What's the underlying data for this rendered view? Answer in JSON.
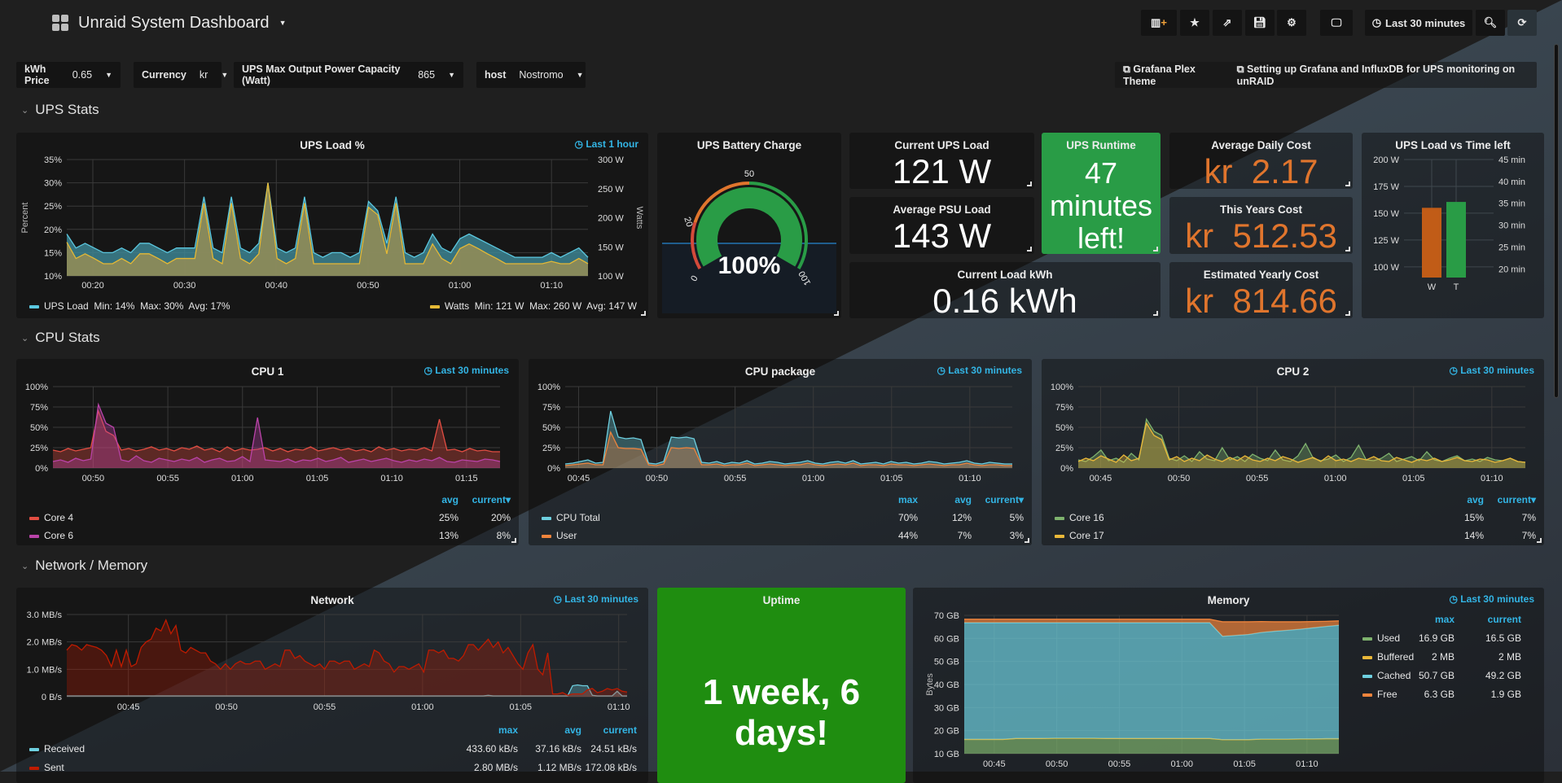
{
  "header": {
    "title": "Unraid System Dashboard",
    "time_range": "Last 30 minutes"
  },
  "toolbar": {
    "icons": [
      "add-panel-icon",
      "star-icon",
      "share-icon",
      "save-icon",
      "gear-icon",
      "tv-icon",
      "clock-icon",
      "zoom-out-icon",
      "refresh-icon"
    ]
  },
  "variables": [
    {
      "label": "kWh Price",
      "value": "0.65"
    },
    {
      "label": "Currency",
      "value": "kr"
    },
    {
      "label": "UPS Max Output Power Capacity (Watt)",
      "value": "865"
    },
    {
      "label": "host",
      "value": "Nostromo"
    }
  ],
  "links": [
    "Grafana Plex Theme",
    "Setting up Grafana and InfluxDB for UPS monitoring on unRAID"
  ],
  "rows": [
    "UPS Stats",
    "CPU Stats",
    "Network / Memory"
  ],
  "colors": {
    "accent": "#33b5e5",
    "green": "#299c46",
    "uptime_green": "#1f8d10",
    "orange": "#e0752d",
    "bar_orange": "#c15c17"
  },
  "ups_load": {
    "title": "UPS Load %",
    "time_range": "Last 1 hour",
    "ylabel_left": "Percent",
    "ylabel_right": "Watts",
    "left_ticks": [
      "35%",
      "30%",
      "25%",
      "20%",
      "15%",
      "10%"
    ],
    "left_range": [
      10,
      35
    ],
    "right_ticks": [
      "300 W",
      "250 W",
      "200 W",
      "150 W",
      "100 W"
    ],
    "right_range": [
      100,
      300
    ],
    "x_ticks": [
      "00:20",
      "00:30",
      "00:40",
      "00:50",
      "01:00",
      "01:10"
    ],
    "load": [
      19,
      16,
      17,
      16,
      15,
      15,
      16,
      15,
      17,
      17,
      16,
      15,
      16,
      16,
      16,
      27,
      16,
      15,
      27,
      16,
      15,
      17,
      30,
      16,
      15,
      16,
      27,
      15,
      14,
      15,
      15,
      14,
      15,
      26,
      24,
      17,
      27,
      15,
      14,
      15,
      19,
      16,
      15,
      18,
      19,
      18,
      17,
      16,
      15,
      14,
      14,
      14,
      14,
      15,
      14,
      15,
      16,
      14
    ],
    "watts": [
      158,
      130,
      138,
      130,
      121,
      121,
      130,
      121,
      138,
      138,
      130,
      121,
      130,
      130,
      130,
      225,
      130,
      121,
      225,
      130,
      121,
      138,
      260,
      130,
      121,
      130,
      225,
      121,
      121,
      121,
      121,
      121,
      121,
      218,
      205,
      138,
      225,
      121,
      121,
      121,
      155,
      130,
      121,
      147,
      155,
      147,
      138,
      130,
      121,
      121,
      121,
      121,
      121,
      125,
      121,
      121,
      130,
      121
    ],
    "legend": [
      {
        "name": "UPS Load",
        "stats": "Min: 14%  Max: 30%  Avg: 17%",
        "color": "#5bc8e0"
      },
      {
        "name": "Watts",
        "stats": "Min: 121 W  Max: 260 W  Avg: 147 W",
        "color": "#e5b935"
      }
    ]
  },
  "battery": {
    "title": "UPS Battery Charge",
    "value": "100%",
    "percent": 100,
    "thresholds": [
      "0",
      "20",
      "50",
      "100"
    ]
  },
  "current_load": {
    "title": "Current UPS Load",
    "value": "121 W"
  },
  "avg_psu": {
    "title": "Average PSU Load",
    "value": "143 W"
  },
  "load_kwh": {
    "title": "Current Load kWh",
    "value": "0.16 kWh"
  },
  "runtime": {
    "title": "UPS Runtime",
    "line1": "47",
    "line2": "minutes",
    "line3": "left!"
  },
  "daily_cost": {
    "title": "Average Daily Cost",
    "currency": "kr",
    "value": "2.17"
  },
  "year_cost": {
    "title": "This Years Cost",
    "currency": "kr",
    "value": "512.53"
  },
  "est_cost": {
    "title": "Estimated Yearly Cost",
    "currency": "kr",
    "value": "814.66"
  },
  "load_vs_time": {
    "title": "UPS Load vs Time left",
    "left_ticks": [
      "200 W",
      "175 W",
      "150 W",
      "125 W",
      "100 W"
    ],
    "left_range": [
      90,
      200
    ],
    "right_ticks": [
      "45 min",
      "40 min",
      "35 min",
      "30 min",
      "25 min",
      "20 min"
    ],
    "right_range": [
      18,
      45
    ],
    "bars": [
      {
        "label": "W",
        "value": 155,
        "color": "#c15c17"
      },
      {
        "label": "T",
        "value": 35.3,
        "color": "#299c46"
      }
    ]
  },
  "cpu1": {
    "title": "CPU 1",
    "time_range": "Last 30 minutes",
    "y_ticks": [
      "100%",
      "75%",
      "50%",
      "25%",
      "0%"
    ],
    "x_ticks": [
      "00:50",
      "00:55",
      "01:00",
      "01:05",
      "01:10",
      "01:15"
    ],
    "legend_headers": [
      "avg",
      "current▾"
    ],
    "series": [
      {
        "name": "Core 4",
        "color": "#e24d42",
        "avg": "25%",
        "current": "20%",
        "values": [
          22,
          20,
          24,
          21,
          23,
          25,
          70,
          45,
          40,
          22,
          24,
          21,
          23,
          26,
          22,
          24,
          21,
          25,
          23,
          27,
          22,
          24,
          20,
          26,
          21,
          24,
          22,
          23,
          25,
          21,
          24,
          20,
          23,
          22,
          26,
          21,
          23,
          25,
          22,
          24,
          21,
          23,
          20,
          26,
          22,
          24,
          21,
          23,
          22,
          25,
          21,
          60,
          22,
          23,
          20,
          24,
          21,
          22,
          20,
          20
        ]
      },
      {
        "name": "Core 6",
        "color": "#ba43a9",
        "avg": "13%",
        "current": "8%",
        "values": [
          8,
          10,
          7,
          12,
          9,
          11,
          78,
          55,
          50,
          10,
          8,
          15,
          9,
          7,
          12,
          10,
          8,
          11,
          9,
          13,
          7,
          10,
          12,
          8,
          9,
          14,
          8,
          62,
          10,
          9,
          8,
          11,
          7,
          10,
          9,
          12,
          8,
          10,
          13,
          7,
          9,
          11,
          8,
          10,
          12,
          9,
          7,
          10,
          8,
          11,
          9,
          13,
          8,
          7,
          10,
          9,
          8,
          11,
          10,
          8
        ]
      }
    ]
  },
  "cpu_pkg": {
    "title": "CPU package",
    "time_range": "Last 30 minutes",
    "y_ticks": [
      "100%",
      "75%",
      "50%",
      "25%",
      "0%"
    ],
    "x_ticks": [
      "00:45",
      "00:50",
      "00:55",
      "01:00",
      "01:05",
      "01:10"
    ],
    "legend_headers": [
      "max",
      "avg",
      "current▾"
    ],
    "series": [
      {
        "name": "CPU Total",
        "color": "#6ed0e0",
        "max": "70%",
        "avg": "12%",
        "current": "5%",
        "values": [
          5,
          6,
          8,
          10,
          6,
          7,
          70,
          38,
          36,
          37,
          35,
          6,
          5,
          8,
          38,
          37,
          38,
          36,
          7,
          6,
          8,
          5,
          7,
          6,
          9,
          5,
          6,
          8,
          7,
          5,
          6,
          7,
          9,
          6,
          5,
          7,
          8,
          6,
          9,
          5,
          6,
          7,
          5,
          8,
          6,
          7,
          5,
          6,
          8,
          7,
          5,
          6,
          7,
          9,
          6,
          5,
          7,
          6,
          5,
          5
        ]
      },
      {
        "name": "User",
        "color": "#ef843c",
        "max": "44%",
        "avg": "7%",
        "current": "3%",
        "values": [
          3,
          4,
          5,
          6,
          4,
          4,
          44,
          25,
          24,
          24,
          23,
          4,
          3,
          5,
          25,
          24,
          25,
          24,
          4,
          4,
          5,
          3,
          4,
          4,
          6,
          3,
          4,
          5,
          4,
          3,
          4,
          4,
          6,
          4,
          3,
          4,
          5,
          4,
          6,
          3,
          4,
          4,
          3,
          5,
          4,
          4,
          3,
          4,
          5,
          4,
          3,
          4,
          4,
          6,
          4,
          3,
          4,
          4,
          3,
          3
        ]
      }
    ]
  },
  "cpu2": {
    "title": "CPU 2",
    "time_range": "Last 30 minutes",
    "y_ticks": [
      "100%",
      "75%",
      "50%",
      "25%",
      "0%"
    ],
    "x_ticks": [
      "00:45",
      "00:50",
      "00:55",
      "01:00",
      "01:05",
      "01:10"
    ],
    "legend_headers": [
      "avg",
      "current▾"
    ],
    "series": [
      {
        "name": "Core 16",
        "color": "#7eb26d",
        "avg": "15%",
        "current": "7%",
        "values": [
          10,
          8,
          14,
          22,
          9,
          12,
          7,
          18,
          10,
          60,
          45,
          40,
          12,
          9,
          15,
          8,
          20,
          11,
          9,
          25,
          10,
          14,
          8,
          17,
          12,
          9,
          22,
          10,
          8,
          15,
          30,
          12,
          9,
          11,
          16,
          8,
          13,
          28,
          10,
          9,
          12,
          18,
          8,
          11,
          14,
          9,
          20,
          10,
          8,
          12,
          15,
          9,
          11,
          8,
          13,
          10,
          9,
          12,
          8,
          7
        ]
      },
      {
        "name": "Core 17",
        "color": "#eab839",
        "avg": "14%",
        "current": "7%",
        "values": [
          8,
          12,
          9,
          15,
          11,
          7,
          16,
          9,
          12,
          55,
          40,
          35,
          10,
          14,
          8,
          12,
          9,
          16,
          11,
          8,
          13,
          9,
          15,
          10,
          8,
          12,
          9,
          14,
          11,
          7,
          10,
          13,
          8,
          15,
          9,
          11,
          8,
          12,
          10,
          14,
          9,
          8,
          13,
          10,
          7,
          11,
          9,
          12,
          8,
          10,
          13,
          9,
          8,
          11,
          10,
          7,
          9,
          12,
          8,
          7
        ]
      }
    ]
  },
  "network": {
    "title": "Network",
    "time_range": "Last 30 minutes",
    "y_ticks": [
      "3.0 MB/s",
      "2.0 MB/s",
      "1.0 MB/s",
      "0 B/s"
    ],
    "y_range": [
      0,
      3
    ],
    "x_ticks": [
      "00:45",
      "00:50",
      "00:55",
      "01:00",
      "01:05",
      "01:10"
    ],
    "legend_headers": [
      "max",
      "avg",
      "current"
    ],
    "series": [
      {
        "name": "Received",
        "color": "#6ed0e0",
        "max": "433.60 kB/s",
        "avg": "37.16 kB/s",
        "current": "24.51 kB/s",
        "values": [
          0.03,
          0.03,
          0.03,
          0.03,
          0.03,
          0.03,
          0.03,
          0.03,
          0.03,
          0.03,
          0.03,
          0.03,
          0.03,
          0.03,
          0.03,
          0.03,
          0.03,
          0.03,
          0.03,
          0.03,
          0.03,
          0.03,
          0.03,
          0.03,
          0.03,
          0.03,
          0.03,
          0.03,
          0.03,
          0.03,
          0.03,
          0.03,
          0.03,
          0.03,
          0.03,
          0.03,
          0.03,
          0.03,
          0.03,
          0.03,
          0.03,
          0.03,
          0.03,
          0.03,
          0.03,
          0.03,
          0.03,
          0.03,
          0.03,
          0.03,
          0.03,
          0.03,
          0.03,
          0.03,
          0.03,
          0.03,
          0.03,
          0.03,
          0.03,
          0.03,
          0.03,
          0.03,
          0.03,
          0.03,
          0.03,
          0.03,
          0.03,
          0.03,
          0.03,
          0.03,
          0.03,
          0.03,
          0.03,
          0.03,
          0.03,
          0.03,
          0.03,
          0.03,
          0.03,
          0.03,
          0.03,
          0.03,
          0.03,
          0.03,
          0.03,
          0.05,
          0.03,
          0.03,
          0.03,
          0.03,
          0.03,
          0.03,
          0.03,
          0.03,
          0.03,
          0.03,
          0.03,
          0.03,
          0.03,
          0.03,
          0.03,
          0.03,
          0.4,
          0.43,
          0.4,
          0.4,
          0.05,
          0.03,
          0.03,
          0.03,
          0.03,
          0.2,
          0.03,
          0.03
        ]
      },
      {
        "name": "Sent",
        "color": "#bf1b00",
        "max": "2.80 MB/s",
        "avg": "1.12 MB/s",
        "current": "172.08 kB/s",
        "values": [
          1.7,
          1.9,
          1.85,
          1.7,
          1.9,
          1.85,
          1.8,
          1.7,
          1.5,
          1.1,
          1.7,
          1.1,
          1.7,
          1.1,
          1.2,
          1.8,
          2.0,
          2.1,
          2.5,
          2.4,
          2.8,
          2.3,
          2.6,
          1.7,
          1.6,
          1.8,
          1.7,
          1.6,
          1.6,
          1.3,
          1.2,
          1.0,
          1.2,
          1.0,
          1.2,
          1.3,
          1.2,
          1.2,
          1.3,
          1.3,
          1.0,
          1.1,
          1.2,
          1.1,
          1.7,
          1.7,
          1.4,
          1.5,
          1.3,
          1.2,
          1.1,
          1.2,
          1.0,
          1.3,
          1.3,
          1.2,
          1.3,
          1.3,
          1.0,
          1.1,
          1.2,
          1.1,
          1.7,
          1.6,
          1.3,
          1.2,
          0.9,
          1.1,
          1.1,
          1.0,
          1.1,
          1.2,
          0.9,
          1.7,
          1.7,
          1.6,
          1.7,
          1.4,
          1.4,
          1.3,
          1.5,
          1.9,
          1.9,
          1.7,
          1.9,
          2.1,
          1.8,
          2.0,
          1.6,
          1.8,
          1.5,
          1.2,
          1.0,
          1.6,
          1.9,
          1.0,
          0.8,
          1.6,
          0.1,
          0.1,
          0.15,
          0.05,
          0.1,
          0.1,
          0.1,
          0.25,
          0.3,
          0.15,
          0.2,
          0.3,
          0.25,
          0.3,
          0.2,
          0.17
        ]
      }
    ]
  },
  "uptime": {
    "title": "Uptime",
    "value": "1 week, 6 days!"
  },
  "memory": {
    "title": "Memory",
    "time_range": "Last 30 minutes",
    "ylabel": "Bytes",
    "y_ticks": [
      "70 GB",
      "60 GB",
      "50 GB",
      "40 GB",
      "30 GB",
      "20 GB",
      "10 GB"
    ],
    "y_range": [
      10,
      70
    ],
    "x_ticks": [
      "00:45",
      "00:50",
      "00:55",
      "01:00",
      "01:05",
      "01:10"
    ],
    "legend_headers": [
      "max",
      "current"
    ],
    "series": [
      {
        "name": "Used",
        "color": "#7eb26d",
        "max": "16.9 GB",
        "current": "16.5 GB",
        "values": [
          16.2,
          16.2,
          16.2,
          16.2,
          16.6,
          16.6,
          16.6,
          16.7,
          16.7,
          16.7,
          16.7,
          16.6,
          16.6,
          16.6,
          16.6,
          16.6,
          16.6,
          16.6,
          16.6,
          16.6,
          16.1,
          16.1,
          16.1,
          16.3,
          16.3,
          16.3,
          16.4,
          16.4,
          16.5,
          16.5
        ]
      },
      {
        "name": "Buffered",
        "color": "#eab839",
        "max": "2 MB",
        "current": "2 MB",
        "values": [
          0.002,
          0.002,
          0.002,
          0.002,
          0.002,
          0.002,
          0.002,
          0.002,
          0.002,
          0.002,
          0.002,
          0.002,
          0.002,
          0.002,
          0.002,
          0.002,
          0.002,
          0.002,
          0.002,
          0.002,
          0.002,
          0.002,
          0.002,
          0.002,
          0.002,
          0.002,
          0.002,
          0.002,
          0.002,
          0.002
        ]
      },
      {
        "name": "Cached",
        "color": "#6ed0e0",
        "max": "50.7 GB",
        "current": "49.2 GB",
        "values": [
          50.6,
          50.6,
          50.6,
          50.6,
          50.2,
          50.2,
          50.2,
          50.1,
          50.1,
          50.1,
          50.1,
          50.2,
          50.2,
          50.2,
          50.2,
          50.2,
          50.2,
          50.2,
          50.2,
          50.2,
          44.8,
          45.2,
          45.6,
          46.3,
          46.8,
          47.2,
          47.6,
          48.2,
          48.7,
          49.2
        ]
      },
      {
        "name": "Free",
        "color": "#ef843c",
        "max": "6.3 GB",
        "current": "1.9 GB",
        "values": [
          1.5,
          1.5,
          1.5,
          1.5,
          1.5,
          1.5,
          1.5,
          1.5,
          1.5,
          1.5,
          1.5,
          1.5,
          1.5,
          1.5,
          1.5,
          1.5,
          1.5,
          1.5,
          1.5,
          1.5,
          6.3,
          5.9,
          5.5,
          4.7,
          4.1,
          3.7,
          3.2,
          2.7,
          2.2,
          1.9
        ]
      }
    ]
  }
}
